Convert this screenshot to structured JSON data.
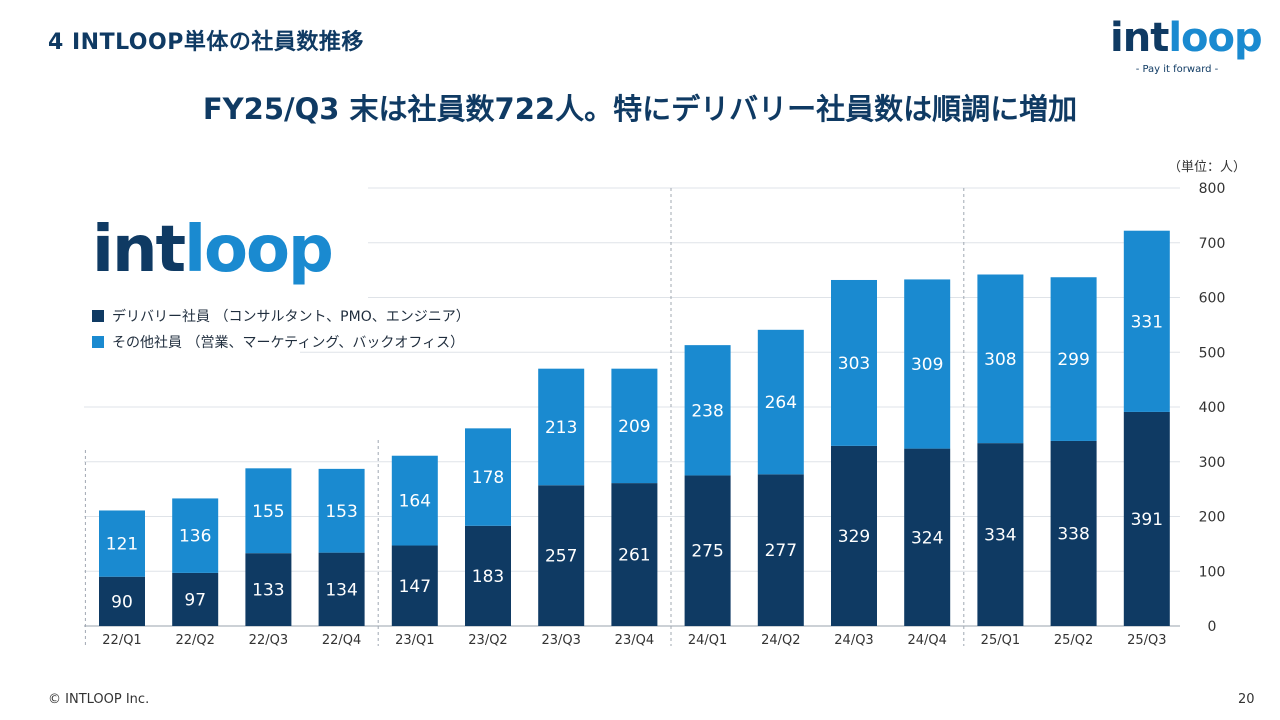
{
  "section_title": "4 INTLOOP単体の社員数推移",
  "headline": "FY25/Q3 末は社員数722人。特にデリバリー社員数は順調に増加",
  "logo": {
    "word_dark": "int",
    "word_light": "loop",
    "tagline": "- Pay it forward -"
  },
  "footer": {
    "copyright": "© INTLOOP Inc.",
    "page": "20"
  },
  "colors": {
    "delivery": "#0f3a63",
    "other": "#1a8ad0",
    "text_dark": "#0f3a63"
  },
  "chart_data": {
    "type": "bar",
    "stacked": true,
    "unit_label": "（単位：人）",
    "categories": [
      "22/Q1",
      "22/Q2",
      "22/Q3",
      "22/Q4",
      "23/Q1",
      "23/Q2",
      "23/Q3",
      "23/Q4",
      "24/Q1",
      "24/Q2",
      "24/Q3",
      "24/Q4",
      "25/Q1",
      "25/Q2",
      "25/Q3"
    ],
    "series": [
      {
        "name": "デリバリー社員 （コンサルタント、PMO、エンジニア）",
        "color": "#0f3a63",
        "values": [
          90,
          97,
          133,
          134,
          147,
          183,
          257,
          261,
          275,
          277,
          329,
          324,
          334,
          338,
          391
        ]
      },
      {
        "name": "その他社員 （営業、マーケティング、バックオフィス）",
        "color": "#1a8ad0",
        "values": [
          121,
          136,
          155,
          153,
          164,
          178,
          213,
          209,
          238,
          264,
          303,
          309,
          308,
          299,
          331
        ]
      }
    ],
    "ylim": [
      0,
      800
    ],
    "yticks": [
      0,
      100,
      200,
      300,
      400,
      500,
      600,
      700,
      800
    ],
    "grid": true,
    "legend_position": "upper-left",
    "axis_position": "right"
  }
}
